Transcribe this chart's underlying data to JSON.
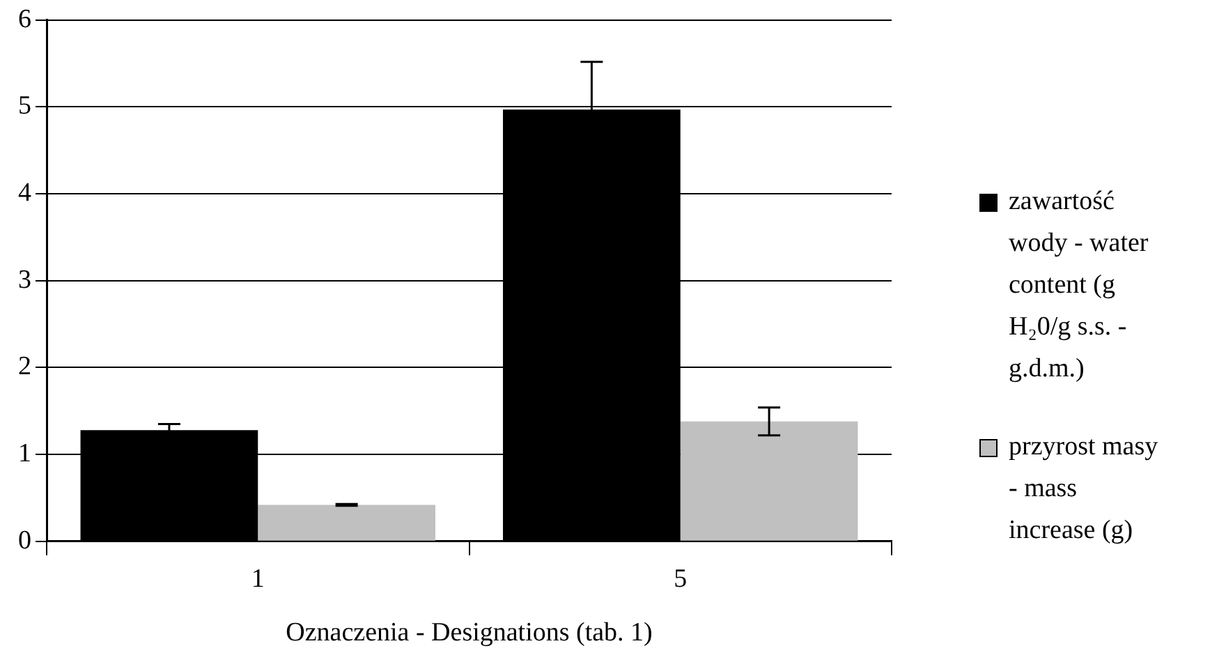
{
  "chart_data": {
    "type": "bar",
    "xlabel": "Oznaczenia - Designations (tab. 1)",
    "categories": [
      "1",
      "5"
    ],
    "series": [
      {
        "name": "zawartość wody - water content (g H₂0/g s.s. - g.d.m.)",
        "color": "#000000",
        "values": [
          1.28,
          4.97
        ],
        "errors": [
          0.07,
          0.55
        ]
      },
      {
        "name": "przyrost masy - mass increase (g)",
        "color": "#c0c0c0",
        "values": [
          0.42,
          1.38
        ],
        "errors": [
          0.01,
          0.16
        ]
      }
    ],
    "ylim": [
      0,
      6
    ],
    "yticks": [
      0,
      1,
      2,
      3,
      4,
      5,
      6
    ],
    "grid": "y",
    "legend": "right"
  }
}
